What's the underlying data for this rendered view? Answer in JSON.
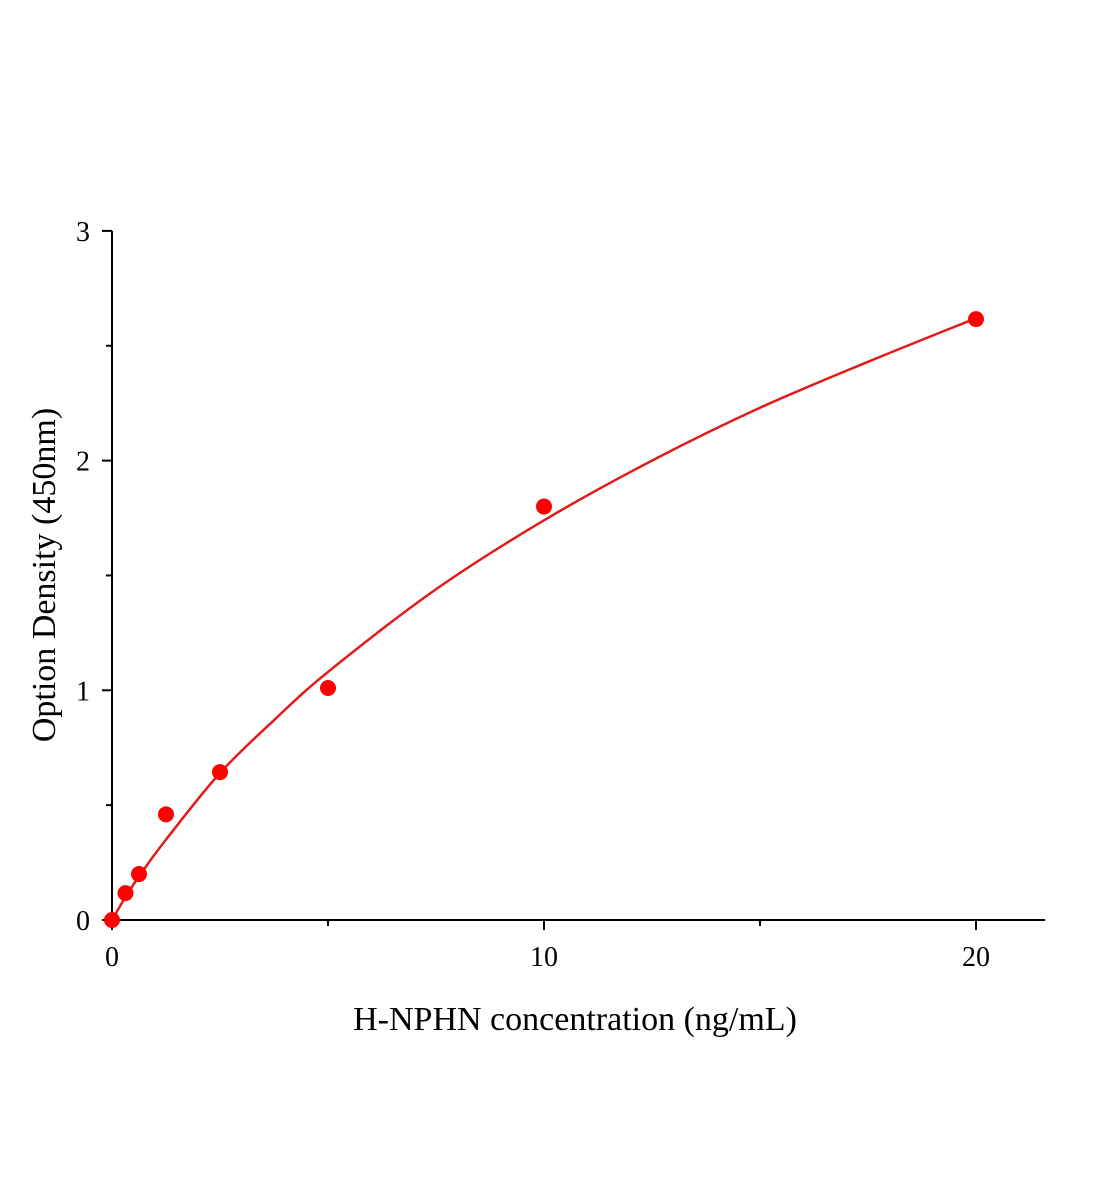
{
  "chart_data": {
    "type": "scatter",
    "title": "",
    "xlabel": "H-NPHN concentration (ng/mL)",
    "ylabel": "Option Density (450nm)",
    "xlim": [
      0,
      21.6
    ],
    "ylim": [
      0,
      3
    ],
    "xticks": [
      0,
      10,
      20
    ],
    "xtick_labels": [
      "0",
      "10",
      "20"
    ],
    "x_minor_ticks": [
      5,
      15
    ],
    "yticks": [
      0,
      1,
      2,
      3
    ],
    "ytick_labels": [
      "0",
      "1",
      "2",
      "3"
    ],
    "y_minor_ticks": [
      0.5,
      1.5,
      2.5
    ],
    "grid": false,
    "legend": "none",
    "colors": {
      "points": "#ff0000",
      "curve": "#e31a1a",
      "axis": "#000000"
    },
    "points": {
      "x": [
        0,
        0.3125,
        0.625,
        1.25,
        2.5,
        5,
        10,
        20
      ],
      "y": [
        0.0,
        0.117,
        0.2,
        0.46,
        0.644,
        1.01,
        1.8,
        2.616
      ]
    },
    "fit_curve": {
      "x": [
        0,
        0.3125,
        0.625,
        1.25,
        2.5,
        3.75,
        5,
        7.5,
        10,
        12.5,
        15,
        17.5,
        20
      ],
      "y": [
        0.0,
        0.1,
        0.19,
        0.35,
        0.64,
        0.87,
        1.08,
        1.44,
        1.74,
        2.0,
        2.23,
        2.43,
        2.62
      ]
    }
  }
}
